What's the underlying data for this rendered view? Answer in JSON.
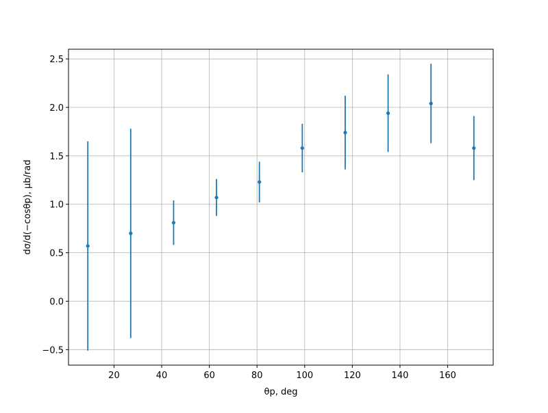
{
  "chart_data": {
    "type": "errorbar",
    "xlabel": "θp, deg",
    "ylabel": "dσ/d(−cosθp), μb/rad",
    "x": [
      9,
      27,
      45,
      63,
      81,
      99,
      117,
      135,
      153,
      171
    ],
    "series": [
      {
        "color": "#1f77b4",
        "values": [
          0.57,
          0.7,
          0.81,
          1.07,
          1.23,
          1.58,
          1.74,
          1.94,
          2.04,
          1.58
        ],
        "errors": [
          1.08,
          1.08,
          0.23,
          0.19,
          0.21,
          0.25,
          0.38,
          0.4,
          0.41,
          0.33
        ]
      }
    ],
    "xlim": [
      0.9,
      179.1
    ],
    "xticks": [
      20,
      40,
      60,
      80,
      100,
      120,
      140,
      160
    ],
    "ylim": [
      -0.66,
      2.6
    ],
    "yticks": [
      {
        "value": -0.5,
        "label": "−0.5"
      },
      {
        "value": 0,
        "label": "0.0"
      },
      0.5,
      {
        "value": 1,
        "label": "1.0"
      },
      1.5,
      {
        "value": 2,
        "label": "2.0"
      },
      2.5
    ],
    "grid": true
  }
}
